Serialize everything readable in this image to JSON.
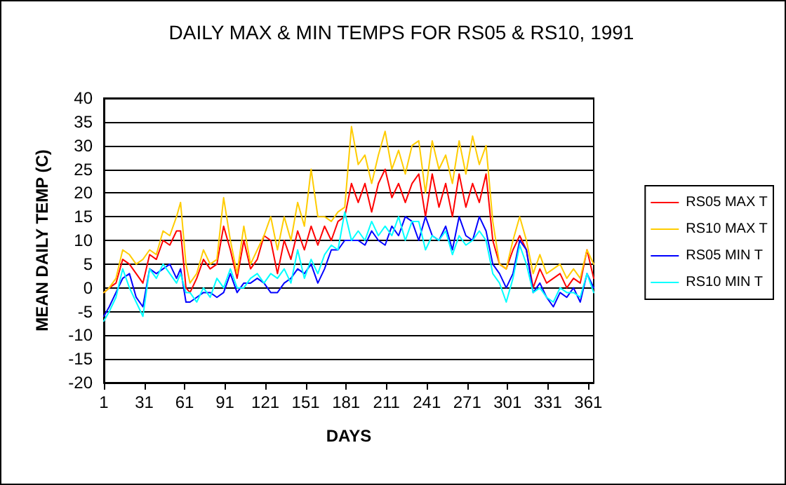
{
  "chart_data": {
    "type": "line",
    "title": "DAILY MAX & MIN TEMPS FOR RS05 & RS10, 1991",
    "xlabel": "DAYS",
    "ylabel": "MEAN DAILY TEMP (C)",
    "x": [
      1,
      5,
      10,
      15,
      20,
      25,
      30,
      35,
      40,
      45,
      50,
      55,
      58,
      62,
      65,
      70,
      75,
      80,
      85,
      90,
      95,
      100,
      105,
      110,
      115,
      120,
      125,
      130,
      135,
      140,
      145,
      150,
      155,
      160,
      165,
      170,
      175,
      180,
      185,
      190,
      195,
      200,
      205,
      210,
      215,
      220,
      225,
      230,
      235,
      240,
      245,
      250,
      255,
      260,
      265,
      270,
      275,
      280,
      285,
      290,
      295,
      300,
      305,
      310,
      315,
      320,
      325,
      330,
      335,
      340,
      345,
      350,
      355,
      360,
      365
    ],
    "series": [
      {
        "name": "RS05 MAX T",
        "color": "#ff0000",
        "values": [
          -1,
          0,
          1,
          6,
          5,
          3,
          1,
          7,
          6,
          10,
          9,
          12,
          12,
          0,
          -1,
          2,
          6,
          4,
          5,
          13,
          8,
          2,
          10,
          4,
          6,
          11,
          10,
          3,
          10,
          6,
          12,
          8,
          13,
          9,
          13,
          10,
          14,
          15,
          22,
          18,
          22,
          16,
          22,
          25,
          19,
          22,
          18,
          22,
          24,
          15,
          24,
          17,
          22,
          15,
          24,
          17,
          22,
          18,
          24,
          10,
          5,
          4,
          8,
          11,
          8,
          0,
          4,
          1,
          2,
          3,
          0,
          2,
          1,
          8,
          2
        ]
      },
      {
        "name": "RS10 MAX T",
        "color": "#ffcc00",
        "values": [
          -1,
          0,
          2,
          8,
          7,
          5,
          6,
          8,
          7,
          12,
          11,
          15,
          18,
          5,
          1,
          3,
          8,
          5,
          6,
          19,
          10,
          3,
          13,
          5,
          8,
          11,
          15,
          8,
          15,
          10,
          18,
          13,
          25,
          15,
          15,
          14,
          16,
          17,
          34,
          26,
          28,
          22,
          28,
          33,
          25,
          29,
          24,
          30,
          31,
          20,
          31,
          25,
          28,
          22,
          31,
          24,
          32,
          26,
          30,
          14,
          5,
          4,
          10,
          15,
          10,
          3,
          7,
          3,
          4,
          5,
          2,
          4,
          2,
          8,
          5
        ]
      },
      {
        "name": "RS05 MIN T",
        "color": "#0000ff",
        "values": [
          -6,
          -4,
          -1,
          2,
          3,
          -2,
          -4,
          4,
          3,
          4,
          5,
          2,
          4,
          -3,
          -3,
          -2,
          -1,
          -1,
          -2,
          -1,
          3,
          -1,
          1,
          1,
          2,
          1,
          -1,
          -1,
          1,
          2,
          4,
          3,
          5,
          1,
          4,
          8,
          8,
          10,
          10,
          10,
          9,
          12,
          10,
          9,
          13,
          11,
          15,
          14,
          10,
          15,
          11,
          10,
          13,
          8,
          15,
          11,
          10,
          15,
          12,
          5,
          3,
          0,
          3,
          10,
          8,
          -1,
          1,
          -2,
          -4,
          -1,
          -2,
          0,
          -3,
          3,
          0
        ]
      },
      {
        "name": "RS10 MIN T",
        "color": "#00ffff",
        "values": [
          -7,
          -5,
          -2,
          4,
          0,
          -3,
          -6,
          4,
          2,
          5,
          3,
          1,
          3,
          -1,
          -1,
          -3,
          0,
          -2,
          2,
          0,
          4,
          0,
          0,
          2,
          3,
          1,
          3,
          2,
          4,
          1,
          8,
          2,
          6,
          3,
          7,
          9,
          8,
          16,
          10,
          12,
          10,
          14,
          11,
          13,
          11,
          15,
          10,
          14,
          14,
          8,
          11,
          10,
          12,
          7,
          11,
          9,
          10,
          12,
          10,
          3,
          1,
          -3,
          2,
          9,
          5,
          -1,
          0,
          -2,
          -3,
          0,
          -1,
          -1,
          -2,
          3,
          -1
        ]
      }
    ],
    "xlim": [
      1,
      365
    ],
    "xticks": [
      1,
      31,
      61,
      91,
      121,
      151,
      181,
      211,
      241,
      271,
      301,
      331,
      361
    ],
    "ylim": [
      -20,
      40
    ],
    "yticks": [
      -20,
      -15,
      -10,
      -5,
      0,
      5,
      10,
      15,
      20,
      25,
      30,
      35,
      40
    ],
    "grid": "y",
    "legend": "right",
    "marker": "none",
    "line_style": "solid"
  }
}
